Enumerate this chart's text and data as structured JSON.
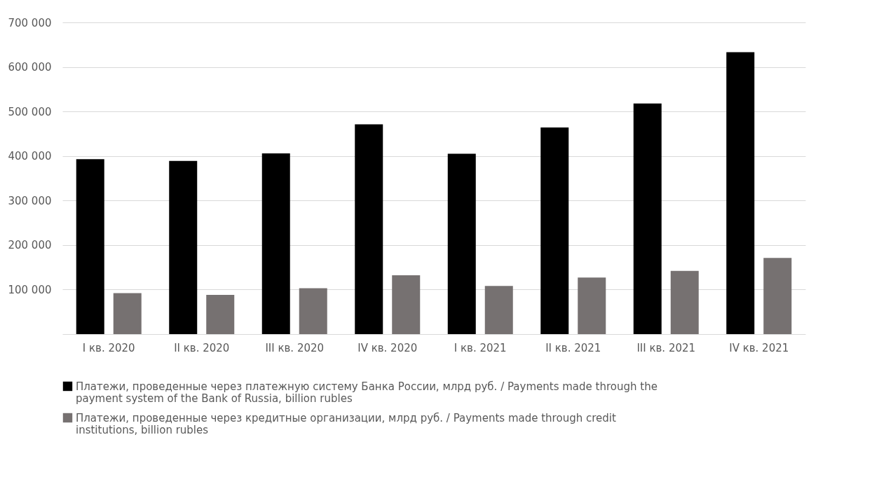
{
  "chart_data": {
    "type": "bar",
    "categories": [
      "I кв. 2020",
      "II кв. 2020",
      "III кв. 2020",
      "IV кв. 2020",
      "I кв. 2021",
      "II кв. 2021",
      "III кв. 2021",
      "IV кв. 2021"
    ],
    "series": [
      {
        "name": "Платежи, проведенные через платежную систему Банка России, млрд руб. / Payments made through the payment system of the Bank of Russia, billion rubles",
        "color": "#000000",
        "values": [
          393000,
          389000,
          406000,
          471000,
          405000,
          464000,
          518000,
          633000
        ]
      },
      {
        "name": "Платежи, проведенные через кредитные организации, млрд руб. / Payments made through credit institutions, billion rubles",
        "color": "#767171",
        "values": [
          92000,
          88000,
          103000,
          132000,
          108000,
          127000,
          142000,
          171000
        ]
      }
    ],
    "ylim": [
      0,
      700000
    ],
    "yticks": [
      {
        "value": 0,
        "label": null
      },
      {
        "value": 100000,
        "label": "100 000"
      },
      {
        "value": 200000,
        "label": "200 000"
      },
      {
        "value": 300000,
        "label": "300 000"
      },
      {
        "value": 400000,
        "label": "400 000"
      },
      {
        "value": 500000,
        "label": "500 000"
      },
      {
        "value": 600000,
        "label": "600 000"
      },
      {
        "value": 700000,
        "label": "700 000"
      }
    ],
    "grid": "y",
    "legend": "bottom"
  }
}
